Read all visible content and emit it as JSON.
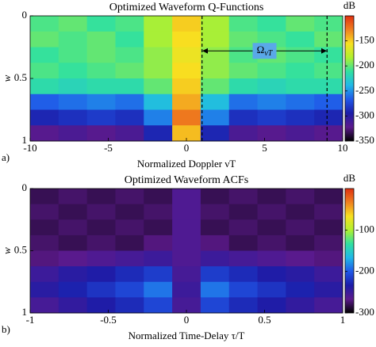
{
  "chart_data": [
    {
      "type": "heatmap",
      "title": "Optimized Waveform Q-Functions",
      "xlabel": "Normalized Doppler νT",
      "ylabel": "w",
      "panel_label": "a)",
      "xlim": [
        -10,
        10
      ],
      "xticks": [
        -10,
        -5,
        0,
        5,
        10
      ],
      "ylim": [
        0,
        1
      ],
      "yticks": [
        0,
        0.5,
        1
      ],
      "colorbar_label": "dB",
      "clim": [
        -350,
        -100
      ],
      "cticks": [
        -150,
        -200,
        -250,
        -300,
        -350
      ],
      "colormap": [
        "#000000",
        "#5c1a8c",
        "#1c1ca8",
        "#2058e8",
        "#20b8e8",
        "#30e0a0",
        "#b0f030",
        "#f8e020",
        "#f08020",
        "#e03010"
      ],
      "annotation": {
        "symbol": "Ω",
        "subscript": "νT",
        "x": [
          1,
          9
        ],
        "y": 0.28
      },
      "z": [
        [
          -205,
          -200,
          -210,
          -205,
          -185,
          -150,
          -185,
          -205,
          -210,
          -200,
          -205
        ],
        [
          -200,
          -205,
          -200,
          -210,
          -185,
          -155,
          -185,
          -200,
          -205,
          -210,
          -200
        ],
        [
          -210,
          -205,
          -200,
          -205,
          -190,
          -160,
          -190,
          -205,
          -200,
          -205,
          -210
        ],
        [
          -205,
          -210,
          -205,
          -200,
          -190,
          -155,
          -190,
          -200,
          -205,
          -210,
          -205
        ],
        [
          -215,
          -220,
          -215,
          -215,
          -200,
          -150,
          -200,
          -215,
          -220,
          -215,
          -215
        ],
        [
          -265,
          -260,
          -255,
          -260,
          -235,
          -140,
          -235,
          -260,
          -255,
          -260,
          -265
        ],
        [
          -290,
          -285,
          -280,
          -285,
          -255,
          -125,
          -255,
          -285,
          -280,
          -285,
          -290
        ],
        [
          -320,
          -315,
          -320,
          -315,
          -290,
          -145,
          -290,
          -315,
          -320,
          -315,
          -320
        ]
      ]
    },
    {
      "type": "heatmap",
      "title": "Optimized Waveform ACFs",
      "xlabel": "Normalized Time-Delay τ/T",
      "ylabel": "w",
      "panel_label": "b)",
      "xlim": [
        -1,
        1
      ],
      "xticks": [
        -1,
        -0.5,
        0,
        0.5,
        1
      ],
      "ylim": [
        0,
        1
      ],
      "yticks": [
        0,
        0.5,
        1
      ],
      "colorbar_label": "dB",
      "clim": [
        -300,
        0
      ],
      "cticks": [
        -100,
        -200,
        -300
      ],
      "colormap": [
        "#000000",
        "#5c1a8c",
        "#1c1ca8",
        "#2058e8",
        "#20b8e8",
        "#30e0a0",
        "#b0f030",
        "#f8e020",
        "#f08020",
        "#e03010"
      ],
      "z": [
        [
          -280,
          -275,
          -280,
          -275,
          -280,
          -260,
          -280,
          -275,
          -280,
          -275,
          -280
        ],
        [
          -275,
          -280,
          -275,
          -280,
          -275,
          -260,
          -275,
          -280,
          -275,
          -280,
          -275
        ],
        [
          -280,
          -275,
          -280,
          -275,
          -280,
          -260,
          -280,
          -275,
          -280,
          -275,
          -280
        ],
        [
          -275,
          -280,
          -275,
          -280,
          -270,
          -260,
          -270,
          -280,
          -275,
          -280,
          -275
        ],
        [
          -270,
          -265,
          -260,
          -255,
          -250,
          -260,
          -250,
          -255,
          -260,
          -265,
          -270
        ],
        [
          -250,
          -240,
          -235,
          -225,
          -215,
          -255,
          -215,
          -225,
          -235,
          -240,
          -250
        ],
        [
          -240,
          -230,
          -220,
          -210,
          -190,
          -250,
          -190,
          -210,
          -220,
          -230,
          -240
        ],
        [
          -255,
          -245,
          -235,
          -225,
          -210,
          -255,
          -210,
          -225,
          -235,
          -245,
          -255
        ]
      ]
    }
  ]
}
